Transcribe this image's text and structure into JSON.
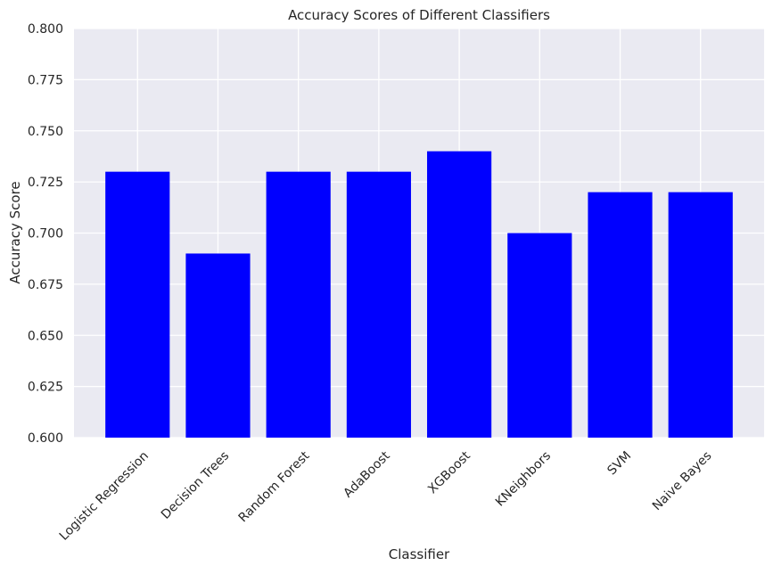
{
  "chart_data": {
    "type": "bar",
    "title": "Accuracy Scores of Different Classifiers",
    "xlabel": "Classifier",
    "ylabel": "Accuracy Score",
    "categories": [
      "Logistic Regression",
      "Decision Trees",
      "Random Forest",
      "AdaBoost",
      "XGBoost",
      "KNeighbors",
      "SVM",
      "Naive Bayes"
    ],
    "values": [
      0.73,
      0.69,
      0.73,
      0.73,
      0.74,
      0.7,
      0.72,
      0.72
    ],
    "ylim": [
      0.6,
      0.8
    ],
    "yticks": [
      "0.600",
      "0.625",
      "0.650",
      "0.675",
      "0.700",
      "0.725",
      "0.750",
      "0.775",
      "0.800"
    ],
    "grid": true,
    "colors": {
      "bar": "#0000ff",
      "plot_background": "#eaeaf2",
      "grid": "#ffffff"
    }
  }
}
